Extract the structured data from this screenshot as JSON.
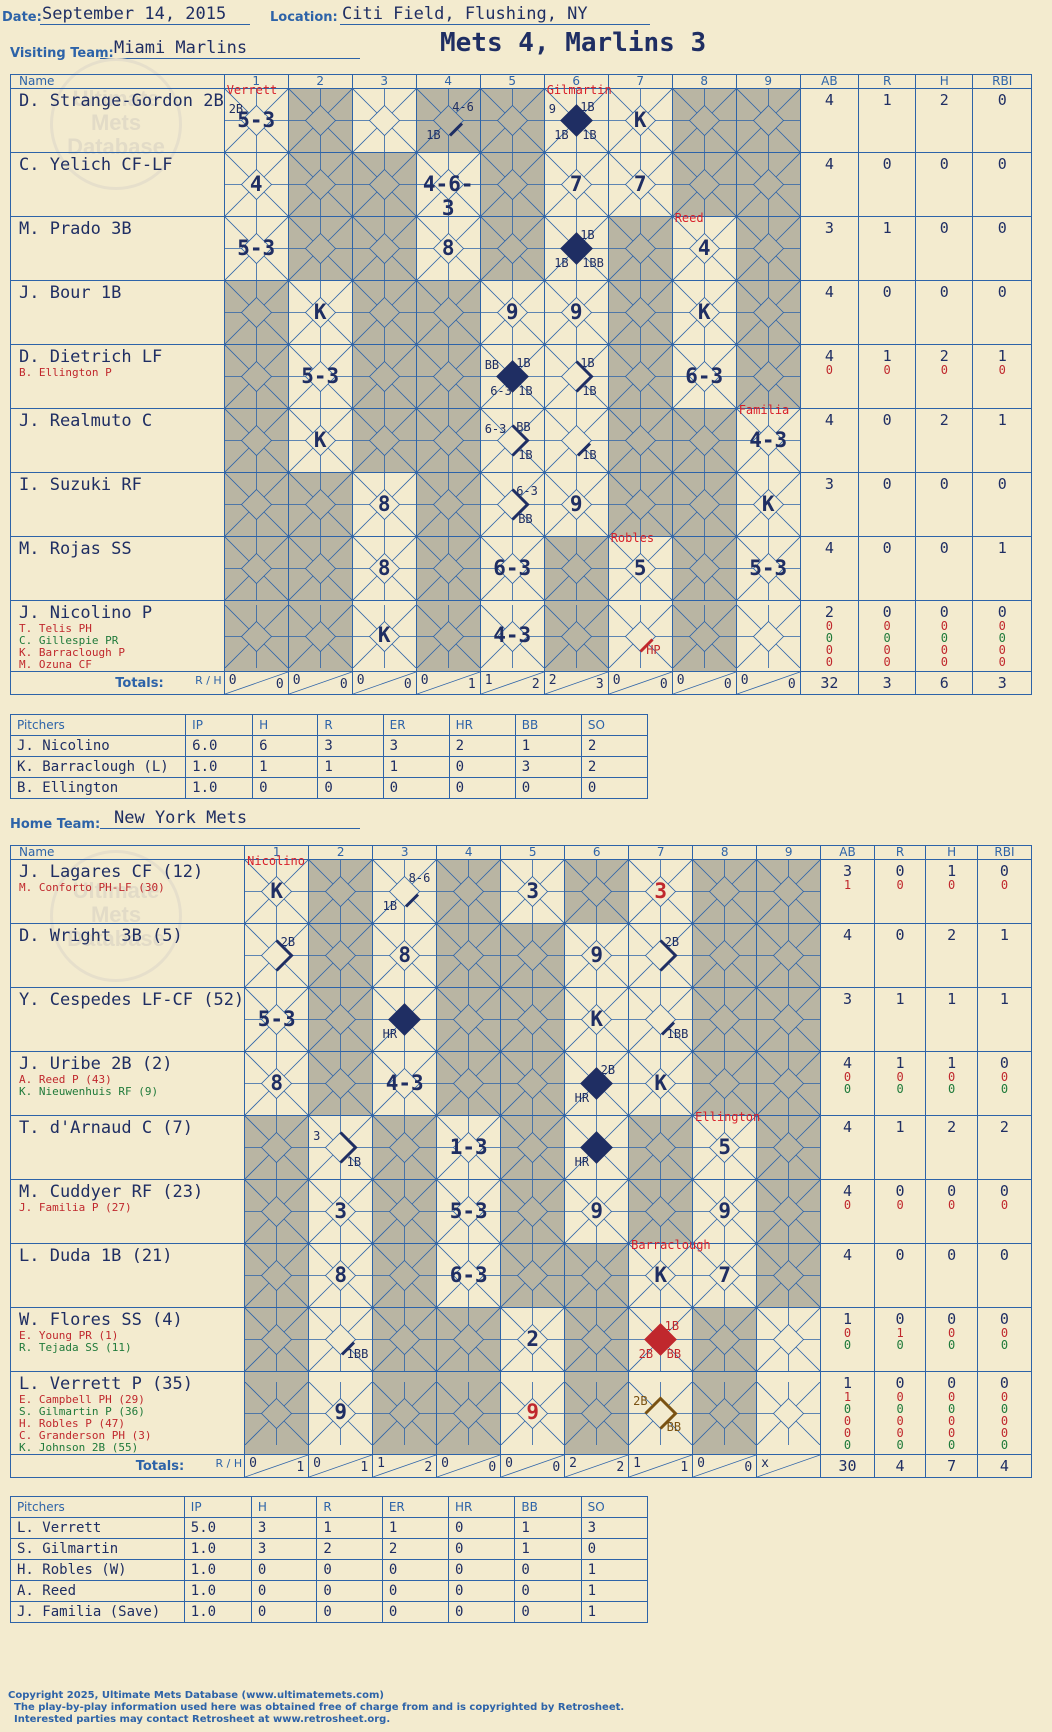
{
  "header": {
    "date_label": "Date:",
    "date": "September 14, 2015",
    "location_label": "Location:",
    "location": "Citi Field, Flushing, NY",
    "title": "Mets 4, Marlins 3"
  },
  "visiting": {
    "team_label": "Visiting Team:",
    "team": "Miami Marlins"
  },
  "home": {
    "team_label": "Home Team:",
    "team": "New York Mets"
  },
  "columns": {
    "name": "Name",
    "innings": [
      "1",
      "2",
      "3",
      "4",
      "5",
      "6",
      "7",
      "8",
      "9"
    ],
    "stats": [
      "AB",
      "R",
      "H",
      "RBI"
    ],
    "totals": "Totals:",
    "r": "R",
    "h": "H"
  },
  "watermark": {
    "line1": "Ultimate",
    "line2": "Mets",
    "line3": "Database",
    "url": "ultimatemets.com"
  },
  "vis_rows": [
    {
      "name": "D. Strange-Gordon 2B",
      "subs": [],
      "ab": "4",
      "r": "1",
      "h": "2",
      "rbi": "0"
    },
    {
      "name": "C. Yelich CF-LF",
      "subs": [],
      "ab": "4",
      "r": "0",
      "h": "0",
      "rbi": "0"
    },
    {
      "name": "M. Prado 3B",
      "subs": [],
      "ab": "3",
      "r": "1",
      "h": "0",
      "rbi": "0"
    },
    {
      "name": "J. Bour 1B",
      "subs": [],
      "ab": "4",
      "r": "0",
      "h": "0",
      "rbi": "0"
    },
    {
      "name": "D. Dietrich LF",
      "subs": [
        {
          "t": "B. Ellington P",
          "c": "red",
          "ab": "0",
          "r": "0",
          "h": "0",
          "rbi": "0"
        }
      ],
      "ab": "4",
      "r": "1",
      "h": "2",
      "rbi": "1"
    },
    {
      "name": "J. Realmuto C",
      "subs": [],
      "ab": "4",
      "r": "0",
      "h": "2",
      "rbi": "1"
    },
    {
      "name": "I. Suzuki RF",
      "subs": [],
      "ab": "3",
      "r": "0",
      "h": "0",
      "rbi": "0"
    },
    {
      "name": "M. Rojas SS",
      "subs": [],
      "ab": "4",
      "r": "0",
      "h": "0",
      "rbi": "1"
    },
    {
      "name": "J. Nicolino P",
      "subs": [
        {
          "t": "T. Telis PH",
          "c": "red",
          "ab": "0",
          "r": "0",
          "h": "0",
          "rbi": "0"
        },
        {
          "t": "C. Gillespie PR",
          "c": "green",
          "ab": "0",
          "r": "0",
          "h": "0",
          "rbi": "0"
        },
        {
          "t": "K. Barraclough P",
          "c": "red",
          "ab": "0",
          "r": "0",
          "h": "0",
          "rbi": "0"
        },
        {
          "t": "M. Ozuna CF",
          "c": "red",
          "ab": "0",
          "r": "0",
          "h": "0",
          "rbi": "0"
        }
      ],
      "ab": "2",
      "r": "0",
      "h": "0",
      "rbi": "0"
    }
  ],
  "vis_totals": {
    "innings": [
      [
        "0",
        "0"
      ],
      [
        "0",
        "0"
      ],
      [
        "0",
        "0"
      ],
      [
        "0",
        "1"
      ],
      [
        "1",
        "2"
      ],
      [
        "2",
        "3"
      ],
      [
        "0",
        "0"
      ],
      [
        "0",
        "0"
      ],
      [
        "0",
        "0"
      ]
    ],
    "ab": "32",
    "r": "3",
    "h": "6",
    "rbi": "3"
  },
  "vis_pitchers": {
    "headers": [
      "Pitchers",
      "IP",
      "H",
      "R",
      "ER",
      "HR",
      "BB",
      "SO"
    ],
    "rows": [
      [
        "J. Nicolino",
        "6.0",
        "6",
        "3",
        "3",
        "2",
        "1",
        "2"
      ],
      [
        "K. Barraclough (L)",
        "1.0",
        "1",
        "1",
        "1",
        "0",
        "3",
        "2"
      ],
      [
        "B. Ellington",
        "1.0",
        "0",
        "0",
        "0",
        "0",
        "0",
        "0"
      ]
    ]
  },
  "home_rows": [
    {
      "name": "J. Lagares CF (12)",
      "subs": [
        {
          "t": "M. Conforto PH-LF (30)",
          "c": "red",
          "ab": "1",
          "r": "0",
          "h": "0",
          "rbi": "0"
        }
      ],
      "ab": "3",
      "r": "0",
      "h": "1",
      "rbi": "0"
    },
    {
      "name": "D. Wright 3B (5)",
      "subs": [],
      "ab": "4",
      "r": "0",
      "h": "2",
      "rbi": "1"
    },
    {
      "name": "Y. Cespedes LF-CF (52)",
      "subs": [],
      "ab": "3",
      "r": "1",
      "h": "1",
      "rbi": "1"
    },
    {
      "name": "J. Uribe 2B (2)",
      "subs": [
        {
          "t": "A. Reed P (43)",
          "c": "red",
          "ab": "0",
          "r": "0",
          "h": "0",
          "rbi": "0"
        },
        {
          "t": "K. Nieuwenhuis RF (9)",
          "c": "green",
          "ab": "0",
          "r": "0",
          "h": "0",
          "rbi": "0"
        }
      ],
      "ab": "4",
      "r": "1",
      "h": "1",
      "rbi": "0"
    },
    {
      "name": "T. d'Arnaud C (7)",
      "subs": [],
      "ab": "4",
      "r": "1",
      "h": "2",
      "rbi": "2"
    },
    {
      "name": "M. Cuddyer RF (23)",
      "subs": [
        {
          "t": "J. Familia P (27)",
          "c": "red",
          "ab": "0",
          "r": "0",
          "h": "0",
          "rbi": "0"
        }
      ],
      "ab": "4",
      "r": "0",
      "h": "0",
      "rbi": "0"
    },
    {
      "name": "L. Duda 1B (21)",
      "subs": [],
      "ab": "4",
      "r": "0",
      "h": "0",
      "rbi": "0"
    },
    {
      "name": "W. Flores SS (4)",
      "subs": [
        {
          "t": "E. Young PR (1)",
          "c": "red",
          "ab": "0",
          "r": "1",
          "h": "0",
          "rbi": "0"
        },
        {
          "t": "R. Tejada SS (11)",
          "c": "green",
          "ab": "0",
          "r": "0",
          "h": "0",
          "rbi": "0"
        }
      ],
      "ab": "1",
      "r": "0",
      "h": "0",
      "rbi": "0"
    },
    {
      "name": "L. Verrett P (35)",
      "subs": [
        {
          "t": "E. Campbell PH (29)",
          "c": "red",
          "ab": "1",
          "r": "0",
          "h": "0",
          "rbi": "0"
        },
        {
          "t": "S. Gilmartin P (36)",
          "c": "green",
          "ab": "0",
          "r": "0",
          "h": "0",
          "rbi": "0"
        },
        {
          "t": "H. Robles P (47)",
          "c": "red",
          "ab": "0",
          "r": "0",
          "h": "0",
          "rbi": "0"
        },
        {
          "t": "C. Granderson PH (3)",
          "c": "red",
          "ab": "0",
          "r": "0",
          "h": "0",
          "rbi": "0"
        },
        {
          "t": "K. Johnson 2B (55)",
          "c": "green",
          "ab": "0",
          "r": "0",
          "h": "0",
          "rbi": "0"
        }
      ],
      "ab": "1",
      "r": "0",
      "h": "0",
      "rbi": "0"
    }
  ],
  "home_totals": {
    "innings": [
      [
        "0",
        "1"
      ],
      [
        "0",
        "1"
      ],
      [
        "1",
        "2"
      ],
      [
        "0",
        "0"
      ],
      [
        "0",
        "0"
      ],
      [
        "2",
        "2"
      ],
      [
        "1",
        "1"
      ],
      [
        "0",
        "0"
      ],
      [
        "x",
        ""
      ]
    ],
    "ab": "30",
    "r": "4",
    "h": "7",
    "rbi": "4"
  },
  "home_pitchers": {
    "headers": [
      "Pitchers",
      "IP",
      "H",
      "R",
      "ER",
      "HR",
      "BB",
      "SO"
    ],
    "rows": [
      [
        "L. Verrett",
        "5.0",
        "3",
        "1",
        "1",
        "0",
        "1",
        "3"
      ],
      [
        "S. Gilmartin",
        "1.0",
        "3",
        "2",
        "2",
        "0",
        "1",
        "0"
      ],
      [
        "H. Robles (W)",
        "1.0",
        "0",
        "0",
        "0",
        "0",
        "0",
        "1"
      ],
      [
        "A. Reed",
        "1.0",
        "0",
        "0",
        "0",
        "0",
        "0",
        "1"
      ],
      [
        "J. Familia (Save)",
        "1.0",
        "0",
        "0",
        "0",
        "0",
        "0",
        "1"
      ]
    ]
  },
  "vis_plays": [
    [
      {
        "i": 1,
        "res": "5-3",
        "pitch": "Verrett",
        "tl": "2B"
      },
      {
        "i": 4,
        "res": "",
        "tr": "4-6",
        "bl": "1B",
        "path": "1"
      },
      {
        "i": 6,
        "res": "",
        "pitch": "Gilmartin",
        "tl": "9",
        "tr": "1B",
        "bl": "1B",
        "br": "1B",
        "path": "run"
      },
      {
        "i": 7,
        "res": "K"
      }
    ],
    [
      {
        "i": 1,
        "res": "4"
      },
      {
        "i": 4,
        "res": "4-6-3"
      },
      {
        "i": 6,
        "res": "7"
      },
      {
        "i": 7,
        "res": "7"
      }
    ],
    [
      {
        "i": 1,
        "res": "5-3"
      },
      {
        "i": 4,
        "res": "8"
      },
      {
        "i": 6,
        "res": "",
        "tr": "1B",
        "bl": "1B",
        "br": "1BB",
        "path": "run"
      },
      {
        "i": 8,
        "res": "4",
        "pitch": "Reed"
      }
    ],
    [
      {
        "i": 2,
        "res": "K"
      },
      {
        "i": 5,
        "res": "9"
      },
      {
        "i": 6,
        "res": "9"
      },
      {
        "i": 8,
        "res": "K"
      }
    ],
    [
      {
        "i": 2,
        "res": "5-3"
      },
      {
        "i": 5,
        "res": "",
        "tl": "BB",
        "tr": "1B",
        "bl": "6-3",
        "br": "1B",
        "path": "run"
      },
      {
        "i": 6,
        "res": "",
        "tr": "1B",
        "br": "1B",
        "path": "2"
      },
      {
        "i": 8,
        "res": "6-3"
      }
    ],
    [
      {
        "i": 2,
        "res": "K"
      },
      {
        "i": 5,
        "res": "",
        "tl": "6-3",
        "tr": "BB",
        "br": "1B",
        "path": "2"
      },
      {
        "i": 6,
        "res": "",
        "br": "1B",
        "path": "1"
      },
      {
        "i": 9,
        "res": "4-3",
        "pitch": "Familia"
      }
    ],
    [
      {
        "i": 3,
        "res": "8"
      },
      {
        "i": 5,
        "res": "",
        "tr": "6-3",
        "br": "BB",
        "path": "2"
      },
      {
        "i": 6,
        "res": "9"
      },
      {
        "i": 9,
        "res": "K"
      }
    ],
    [
      {
        "i": 3,
        "res": "8"
      },
      {
        "i": 5,
        "res": "6-3"
      },
      {
        "i": 7,
        "res": "5",
        "pitch": "Robles"
      },
      {
        "i": 9,
        "res": "5-3"
      }
    ],
    [
      {
        "i": 3,
        "res": "K"
      },
      {
        "i": 5,
        "res": "4-3"
      },
      {
        "i": 7,
        "res": "",
        "br": "HP",
        "path": "hp"
      }
    ]
  ],
  "home_plays": [
    [
      {
        "i": 1,
        "res": "K",
        "pitch": "Nicolino"
      },
      {
        "i": 3,
        "res": "",
        "tr": "8-6",
        "bl": "1B",
        "path": "1"
      },
      {
        "i": 5,
        "res": "3"
      },
      {
        "i": 7,
        "res": "3",
        "red": true
      }
    ],
    [
      {
        "i": 1,
        "res": "",
        "tr": "2B",
        "path": "2"
      },
      {
        "i": 3,
        "res": "8"
      },
      {
        "i": 6,
        "res": "9"
      },
      {
        "i": 7,
        "res": "",
        "tr": "2B",
        "path": "2"
      }
    ],
    [
      {
        "i": 1,
        "res": "5-3"
      },
      {
        "i": 3,
        "res": "",
        "bl": "HR",
        "path": "run"
      },
      {
        "i": 6,
        "res": "K"
      },
      {
        "i": 7,
        "res": "",
        "br": "1BB",
        "path": "1"
      }
    ],
    [
      {
        "i": 1,
        "res": "8"
      },
      {
        "i": 3,
        "res": "4-3"
      },
      {
        "i": 6,
        "res": "",
        "tr": "2B",
        "bl": "HR",
        "path": "run"
      },
      {
        "i": 7,
        "res": "K"
      }
    ],
    [
      {
        "i": 2,
        "res": "",
        "tl": "3",
        "br": "1B",
        "path": "2"
      },
      {
        "i": 4,
        "res": "1-3"
      },
      {
        "i": 6,
        "res": "",
        "bl": "HR",
        "path": "run"
      },
      {
        "i": 8,
        "res": "5",
        "pitch": "Ellington"
      }
    ],
    [
      {
        "i": 2,
        "res": "3"
      },
      {
        "i": 4,
        "res": "5-3"
      },
      {
        "i": 6,
        "res": "9"
      },
      {
        "i": 8,
        "res": "9"
      }
    ],
    [
      {
        "i": 2,
        "res": "8"
      },
      {
        "i": 4,
        "res": "6-3"
      },
      {
        "i": 7,
        "res": "K",
        "pitch": "Barraclough"
      },
      {
        "i": 8,
        "res": "7"
      }
    ],
    [
      {
        "i": 2,
        "res": "",
        "br": "1BB",
        "path": "1"
      },
      {
        "i": 5,
        "res": "2"
      },
      {
        "i": 7,
        "res": "",
        "tr": "1B",
        "bl": "2B",
        "br": "BB",
        "path": "runred"
      }
    ],
    [
      {
        "i": 2,
        "res": "9"
      },
      {
        "i": 5,
        "res": "9",
        "red": true
      },
      {
        "i": 7,
        "res": "",
        "tl": "2B",
        "br": "BB",
        "path": "brown"
      }
    ]
  ],
  "vis_shade": [
    [
      2,
      4,
      5,
      8,
      9
    ],
    [
      2,
      3,
      5,
      8,
      9
    ],
    [
      2,
      3,
      5,
      7,
      9
    ],
    [
      1,
      3,
      4,
      7,
      9
    ],
    [
      1,
      3,
      4,
      7,
      9
    ],
    [
      1,
      3,
      4,
      7,
      8
    ],
    [
      1,
      2,
      4,
      7,
      8
    ],
    [
      1,
      2,
      4,
      6,
      8
    ],
    [
      1,
      2,
      4,
      6,
      8
    ]
  ],
  "home_shade": [
    [
      2,
      4,
      6,
      8,
      9
    ],
    [
      2,
      4,
      5,
      8,
      9
    ],
    [
      2,
      4,
      5,
      8,
      9
    ],
    [
      2,
      4,
      5,
      8,
      9
    ],
    [
      1,
      3,
      5,
      7,
      9
    ],
    [
      1,
      3,
      5,
      7,
      9
    ],
    [
      1,
      3,
      5,
      6,
      9
    ],
    [
      1,
      3,
      4,
      6,
      8
    ],
    [
      1,
      3,
      4,
      6,
      8
    ]
  ],
  "footer": {
    "copyright": "Copyright 2025, Ultimate Mets Database (www.ultimatemets.com)",
    "line2": "The play-by-play information used here was obtained free of charge from and is copyrighted by Retrosheet.",
    "line3": "Interested parties may contact Retrosheet at www.retrosheet.org."
  },
  "colors": {
    "ink": "#1f2e63",
    "grid": "#2d63a8",
    "shade": "#b9b5a3",
    "bg": "#f3ebcf",
    "red": "#c0282d",
    "green": "#1f7a3a",
    "brown": "#7a5212"
  }
}
